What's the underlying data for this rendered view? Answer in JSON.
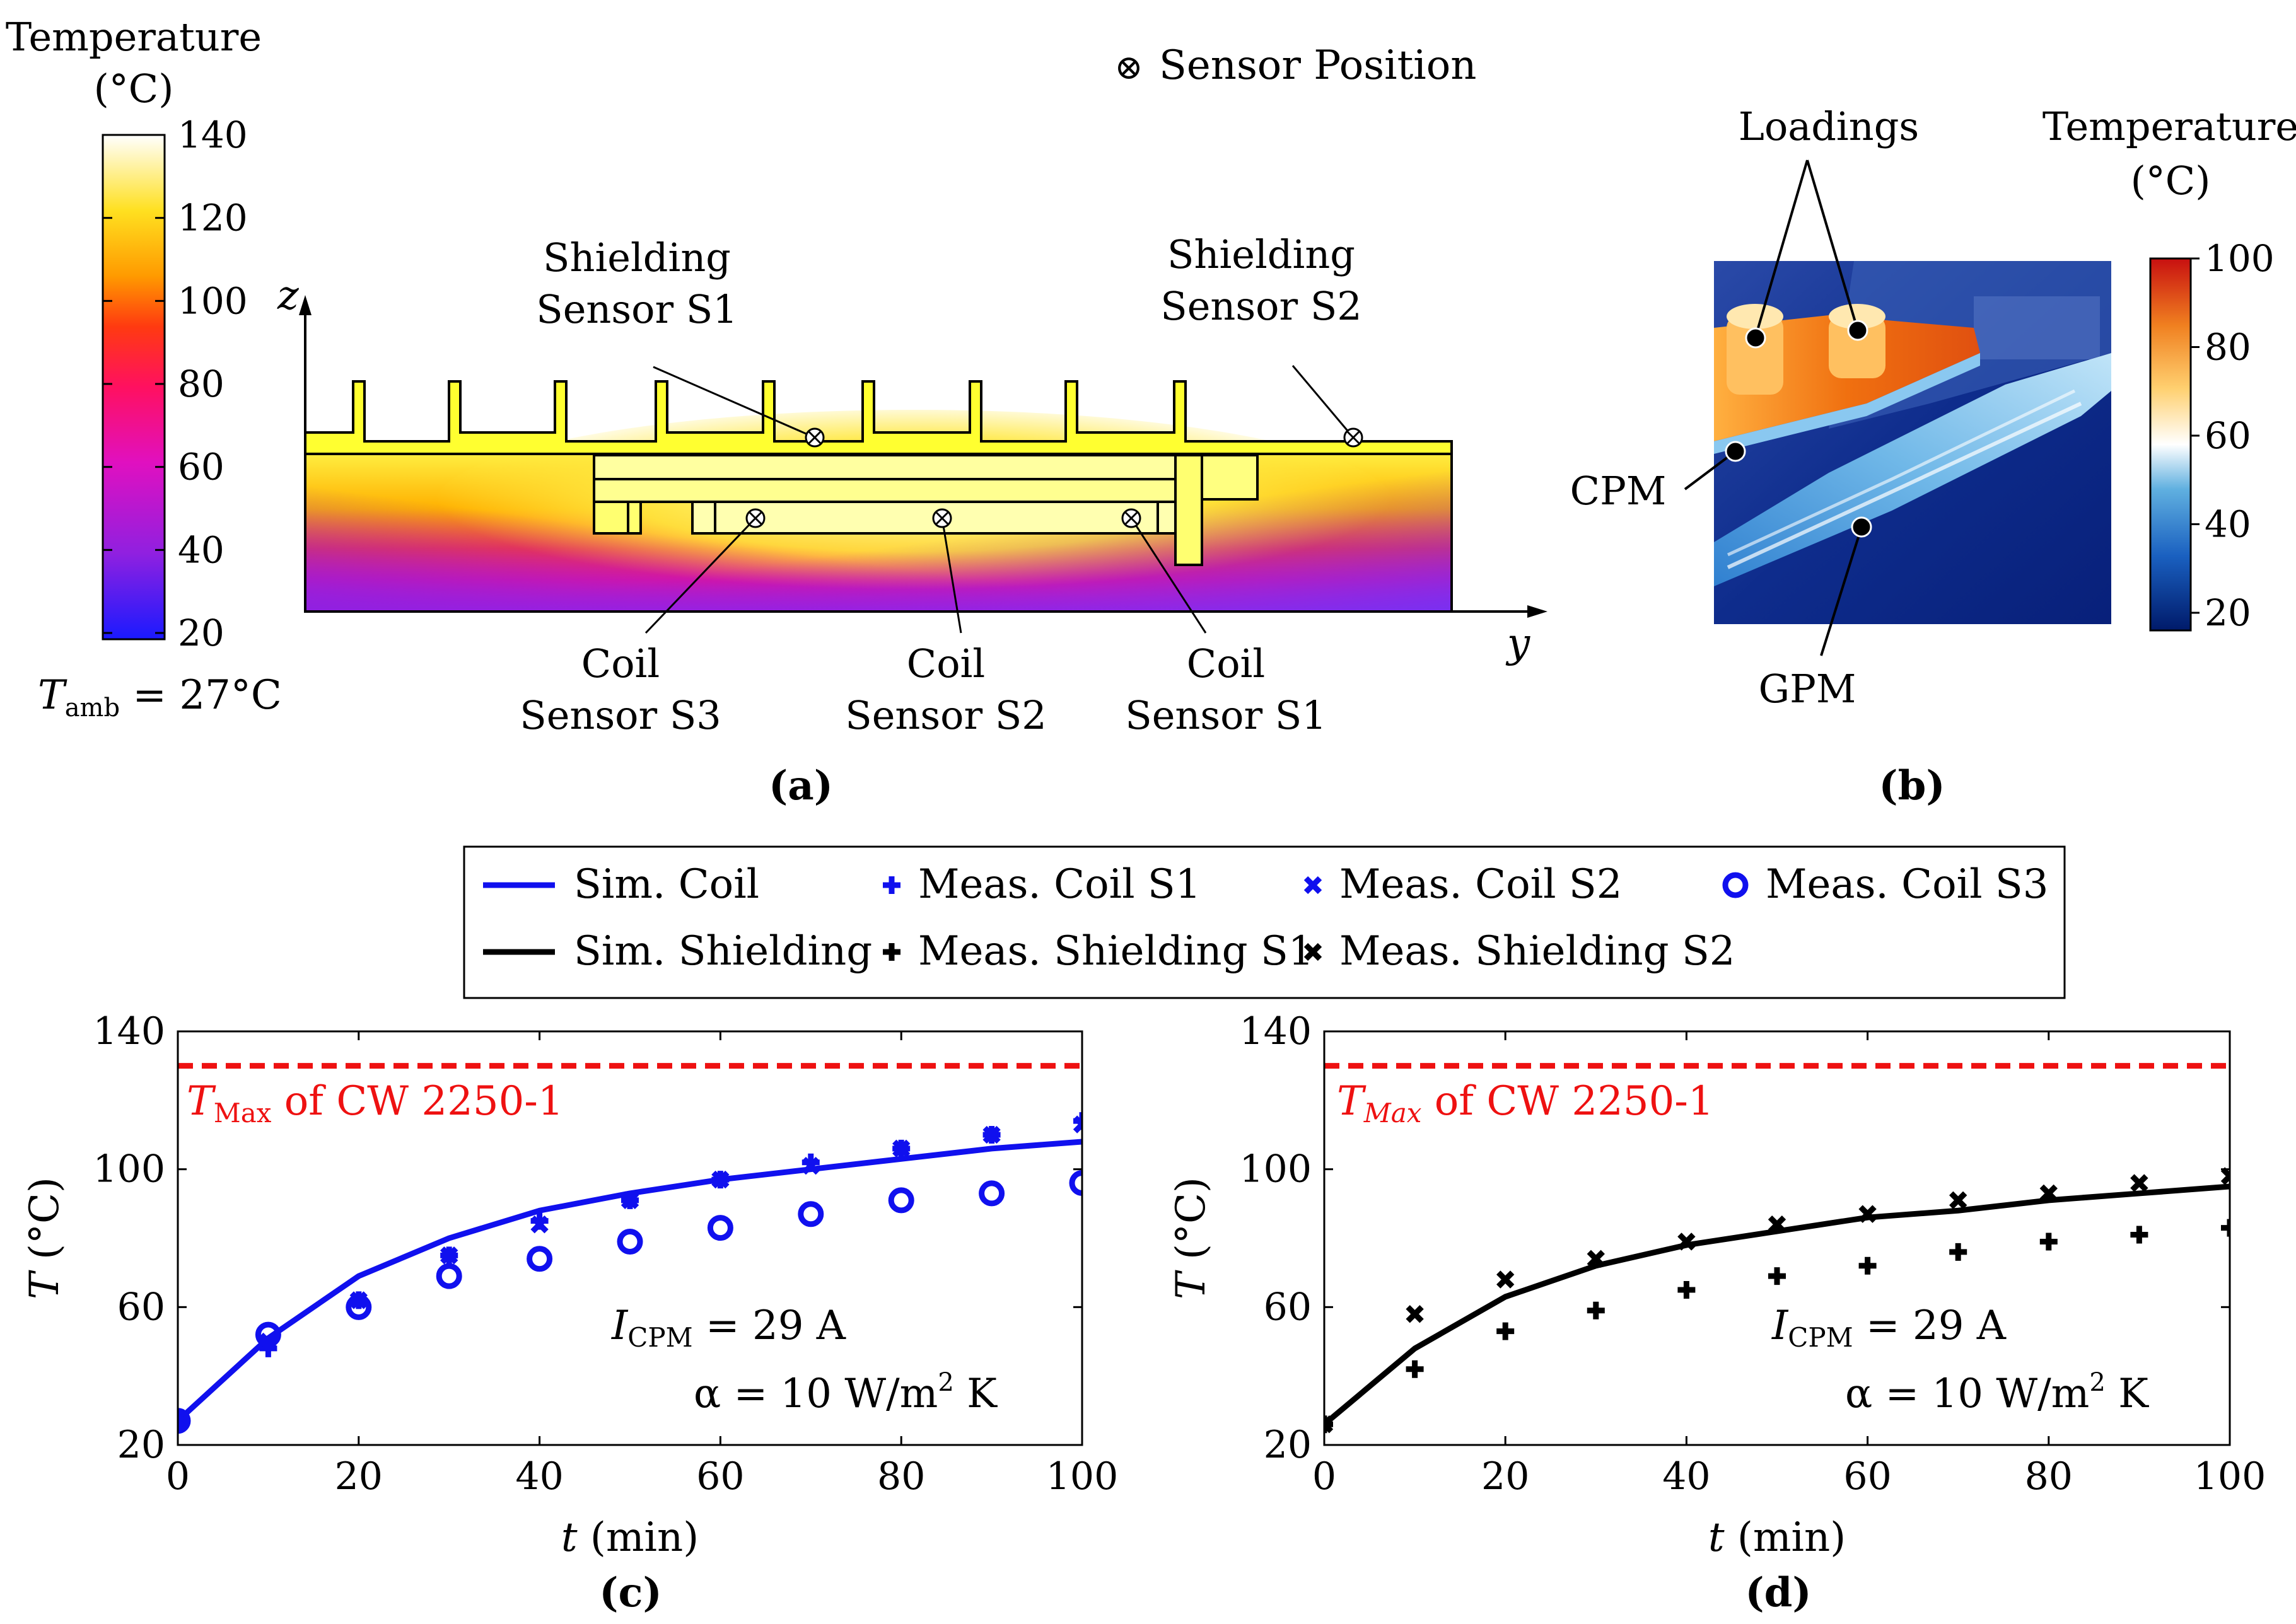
{
  "panel_a": {
    "label": "(a)",
    "colorbar": {
      "title_line1": "Temperature",
      "title_line2": "(°C)",
      "ticks": [
        "140",
        "120",
        "100",
        "80",
        "60",
        "40",
        "20"
      ],
      "ambient_prefix": "T",
      "ambient_sub": "amb",
      "ambient_suffix": " = 27°C"
    },
    "legend_marker": "⊗",
    "legend_text": "Sensor Position",
    "axis_z": "z",
    "axis_y": "y",
    "sensors": {
      "shield_s1": [
        "Shielding",
        "Sensor S1"
      ],
      "shield_s2": [
        "Shielding",
        "Sensor S2"
      ],
      "coil_s3": [
        "Coil",
        "Sensor S3"
      ],
      "coil_s2": [
        "Coil",
        "Sensor S2"
      ],
      "coil_s1": [
        "Coil",
        "Sensor S1"
      ]
    }
  },
  "panel_b": {
    "label": "(b)",
    "loadings": "Loadings",
    "cpm": "CPM",
    "gpm": "GPM",
    "colorbar": {
      "title_line1": "Temperature",
      "title_line2": "(°C)",
      "ticks": [
        "100",
        "80",
        "60",
        "40",
        "20"
      ]
    }
  },
  "legend": {
    "sim_coil": "Sim. Coil",
    "meas_coil_s1": "Meas. Coil S1",
    "meas_coil_s2": "Meas. Coil S2",
    "meas_coil_s3": "Meas. Coil S3",
    "sim_shield": "Sim. Shielding",
    "meas_shield_s1": "Meas. Shielding S1",
    "meas_shield_s2": "Meas. Shielding S2"
  },
  "colors": {
    "coil": "#1010ee",
    "shield": "#000000",
    "limit": "#ee1111"
  },
  "chart_data": [
    {
      "panel": "(c)",
      "type": "line",
      "xlabel_var": "t",
      "xlabel_unit": " (min)",
      "ylabel_var": "T",
      "ylabel_unit": " (°C)",
      "xlim": [
        0,
        100
      ],
      "ylim": [
        20,
        140
      ],
      "xticks": [
        0,
        20,
        40,
        60,
        80,
        100
      ],
      "yticks": [
        20,
        60,
        100,
        140
      ],
      "limit_line": {
        "y": 130,
        "label_var": "T",
        "label_sub": "Max",
        "label_rest": " of CW 2250-1"
      },
      "annotation_1": {
        "var": "I",
        "sub": "CPM",
        "rest": " = 29 A"
      },
      "annotation_2": {
        "text": "α = 10 W/m",
        "sup": "2",
        "tail": " K"
      },
      "series": [
        {
          "name": "Sim. Coil",
          "kind": "line",
          "x": [
            0,
            10,
            20,
            30,
            40,
            50,
            60,
            70,
            80,
            90,
            100
          ],
          "values": [
            27,
            51,
            69,
            80,
            88,
            93,
            97,
            100,
            103,
            106,
            108
          ]
        },
        {
          "name": "Meas. Coil S1",
          "kind": "plus",
          "x": [
            0,
            10,
            20,
            30,
            40,
            50,
            60,
            70,
            80,
            90,
            100
          ],
          "values": [
            27,
            48,
            62,
            75,
            85,
            91,
            97,
            102,
            106,
            110,
            114
          ]
        },
        {
          "name": "Meas. Coil S2",
          "kind": "cross",
          "x": [
            0,
            10,
            20,
            30,
            40,
            50,
            60,
            70,
            80,
            90,
            100
          ],
          "values": [
            27,
            50,
            62,
            75,
            84,
            91,
            97,
            101,
            106,
            110,
            113
          ]
        },
        {
          "name": "Meas. Coil S3",
          "kind": "circle",
          "x": [
            0,
            10,
            20,
            30,
            40,
            50,
            60,
            70,
            80,
            90,
            100
          ],
          "values": [
            27,
            52,
            60,
            69,
            74,
            79,
            83,
            87,
            91,
            93,
            96
          ]
        }
      ]
    },
    {
      "panel": "(d)",
      "type": "line",
      "xlabel_var": "t",
      "xlabel_unit": " (min)",
      "ylabel_var": "T",
      "ylabel_unit": " (°C)",
      "xlim": [
        0,
        100
      ],
      "ylim": [
        20,
        140
      ],
      "xticks": [
        0,
        20,
        40,
        60,
        80,
        100
      ],
      "yticks": [
        20,
        60,
        100,
        140
      ],
      "limit_line": {
        "y": 130,
        "label_var": "T",
        "label_sub": "Max",
        "label_rest": " of CW 2250-1"
      },
      "annotation_1": {
        "var": "I",
        "sub": "CPM",
        "rest": " = 29 A"
      },
      "annotation_2": {
        "text": "α = 10 W/m",
        "sup": "2",
        "tail": " K"
      },
      "series": [
        {
          "name": "Sim. Shielding",
          "kind": "line",
          "x": [
            0,
            10,
            20,
            30,
            40,
            50,
            60,
            70,
            80,
            90,
            100
          ],
          "values": [
            26,
            48,
            63,
            72,
            78,
            82,
            86,
            88,
            91,
            93,
            95
          ]
        },
        {
          "name": "Meas. Shielding S1",
          "kind": "plus",
          "x": [
            0,
            10,
            20,
            30,
            40,
            50,
            60,
            70,
            80,
            90,
            100
          ],
          "values": [
            26,
            42,
            53,
            59,
            65,
            69,
            72,
            76,
            79,
            81,
            83
          ]
        },
        {
          "name": "Meas. Shielding S2",
          "kind": "cross",
          "x": [
            0,
            10,
            20,
            30,
            40,
            50,
            60,
            70,
            80,
            90,
            100
          ],
          "values": [
            26,
            58,
            68,
            74,
            79,
            84,
            87,
            91,
            93,
            96,
            98
          ]
        }
      ]
    }
  ]
}
